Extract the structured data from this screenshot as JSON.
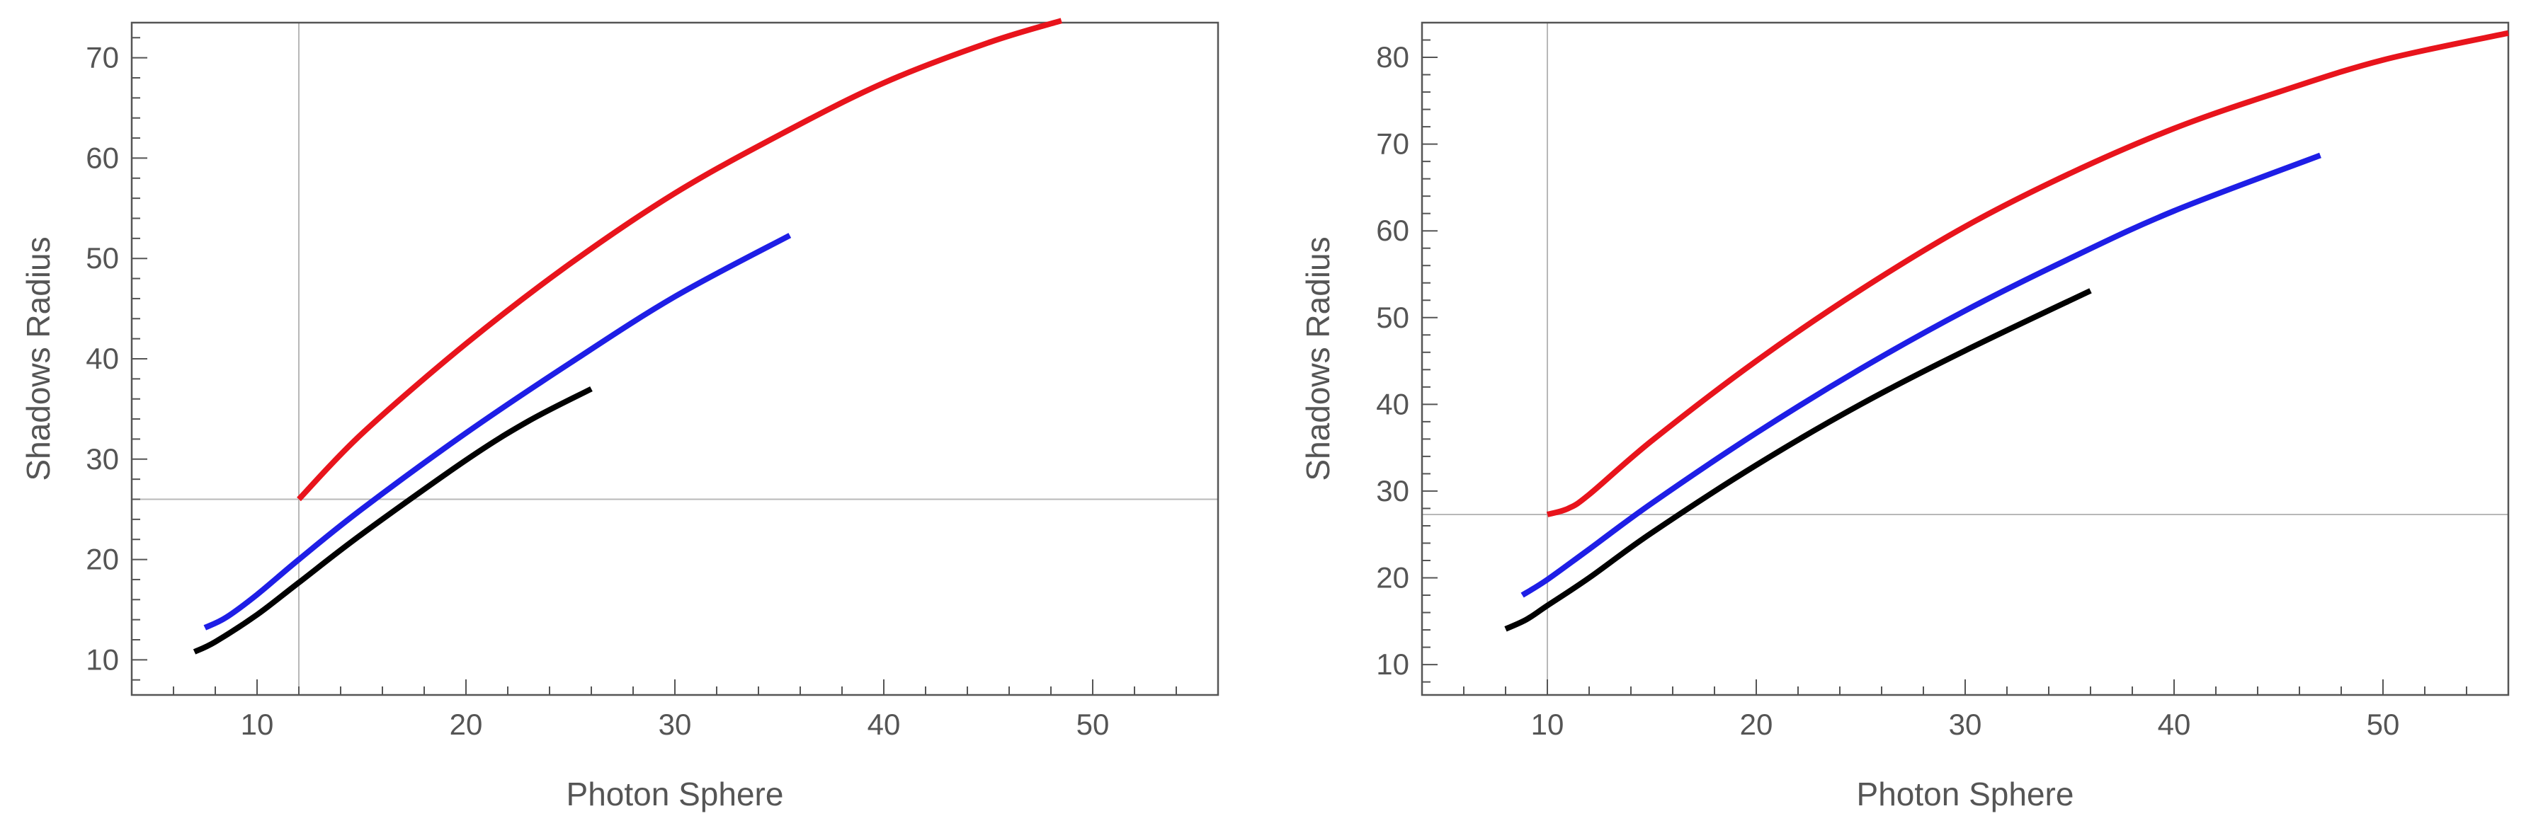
{
  "colors": {
    "frame": "#555555",
    "ref_line": "#b8b8b8",
    "text": "#555555"
  },
  "chart_data": [
    {
      "type": "line",
      "title": "",
      "xlabel": "Photon Sphere",
      "ylabel": "Shadows Radius",
      "xlim": [
        4,
        56
      ],
      "ylim": [
        6.5,
        73.5
      ],
      "xticks": [
        "10",
        "20",
        "30",
        "40",
        "50"
      ],
      "yticks": [
        "10",
        "20",
        "30",
        "40",
        "50",
        "60",
        "70"
      ],
      "x_minor_step": 2,
      "y_minor_step": 2,
      "reference_lines": {
        "x": 12,
        "y": 26
      },
      "series": [
        {
          "color": "#e8141c",
          "x": [
            12,
            15,
            20,
            25,
            30,
            35,
            40,
            45,
            48.5
          ],
          "y": [
            26,
            32.5,
            41.5,
            49.5,
            56.5,
            62.3,
            67.5,
            71.5,
            73.7
          ]
        },
        {
          "color": "#1e1ee6",
          "x": [
            7.5,
            8.5,
            10,
            12,
            15,
            20,
            25,
            30,
            35.5
          ],
          "y": [
            13.2,
            14.2,
            16.5,
            20,
            25,
            32.6,
            39.6,
            46.2,
            52.3
          ]
        },
        {
          "color": "#000000",
          "x": [
            7,
            8,
            10,
            12,
            15,
            20,
            23,
            26
          ],
          "y": [
            10.8,
            11.8,
            14.5,
            17.7,
            22.5,
            29.9,
            33.8,
            37
          ]
        }
      ]
    },
    {
      "type": "line",
      "title": "",
      "xlabel": "Photon Sphere",
      "ylabel": "Shadows Radius",
      "xlim": [
        4,
        56
      ],
      "ylim": [
        6.5,
        84
      ],
      "xticks": [
        "10",
        "20",
        "30",
        "40",
        "50"
      ],
      "yticks": [
        "10",
        "20",
        "30",
        "40",
        "50",
        "60",
        "70",
        "80"
      ],
      "x_minor_step": 2,
      "y_minor_step": 2,
      "reference_lines": {
        "x": 10,
        "y": 27.3
      },
      "series": [
        {
          "color": "#e8141c",
          "x": [
            10,
            11,
            12,
            15,
            20,
            25,
            30,
            35,
            40,
            45,
            50,
            56
          ],
          "y": [
            27.3,
            28,
            29.6,
            35.8,
            45,
            53.2,
            60.5,
            66.6,
            71.8,
            76,
            79.7,
            82.8
          ]
        },
        {
          "color": "#1e1ee6",
          "x": [
            8.8,
            10,
            12,
            15,
            20,
            25,
            30,
            35,
            40,
            47
          ],
          "y": [
            18,
            19.8,
            23.3,
            28.6,
            36.7,
            44.1,
            50.8,
            56.8,
            62.3,
            68.7
          ]
        },
        {
          "color": "#000000",
          "x": [
            8,
            9,
            10,
            12,
            15,
            20,
            25,
            30,
            36
          ],
          "y": [
            14.1,
            15.2,
            16.8,
            20,
            25.2,
            33,
            40,
            46.2,
            53.1
          ]
        }
      ]
    }
  ]
}
